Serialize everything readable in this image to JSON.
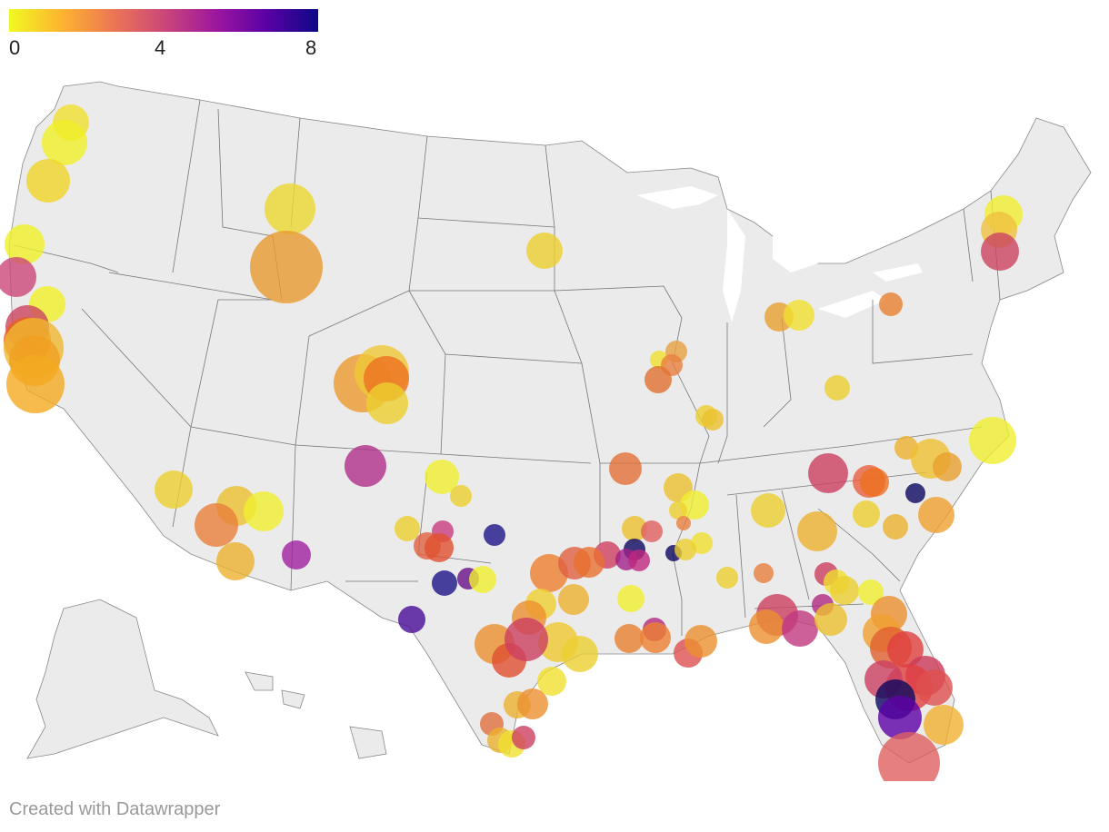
{
  "legend": {
    "ticks": [
      "0",
      "4",
      "8"
    ],
    "min": 0,
    "max": 8,
    "colors": [
      "#f0f921",
      "#fdb42f",
      "#ed7953",
      "#cc4778",
      "#9c179e",
      "#5c01a6",
      "#0d0887"
    ]
  },
  "map": {
    "land_color": "#ebebeb",
    "border_color": "#666666"
  },
  "credit": "Created with Datawrapper"
}
